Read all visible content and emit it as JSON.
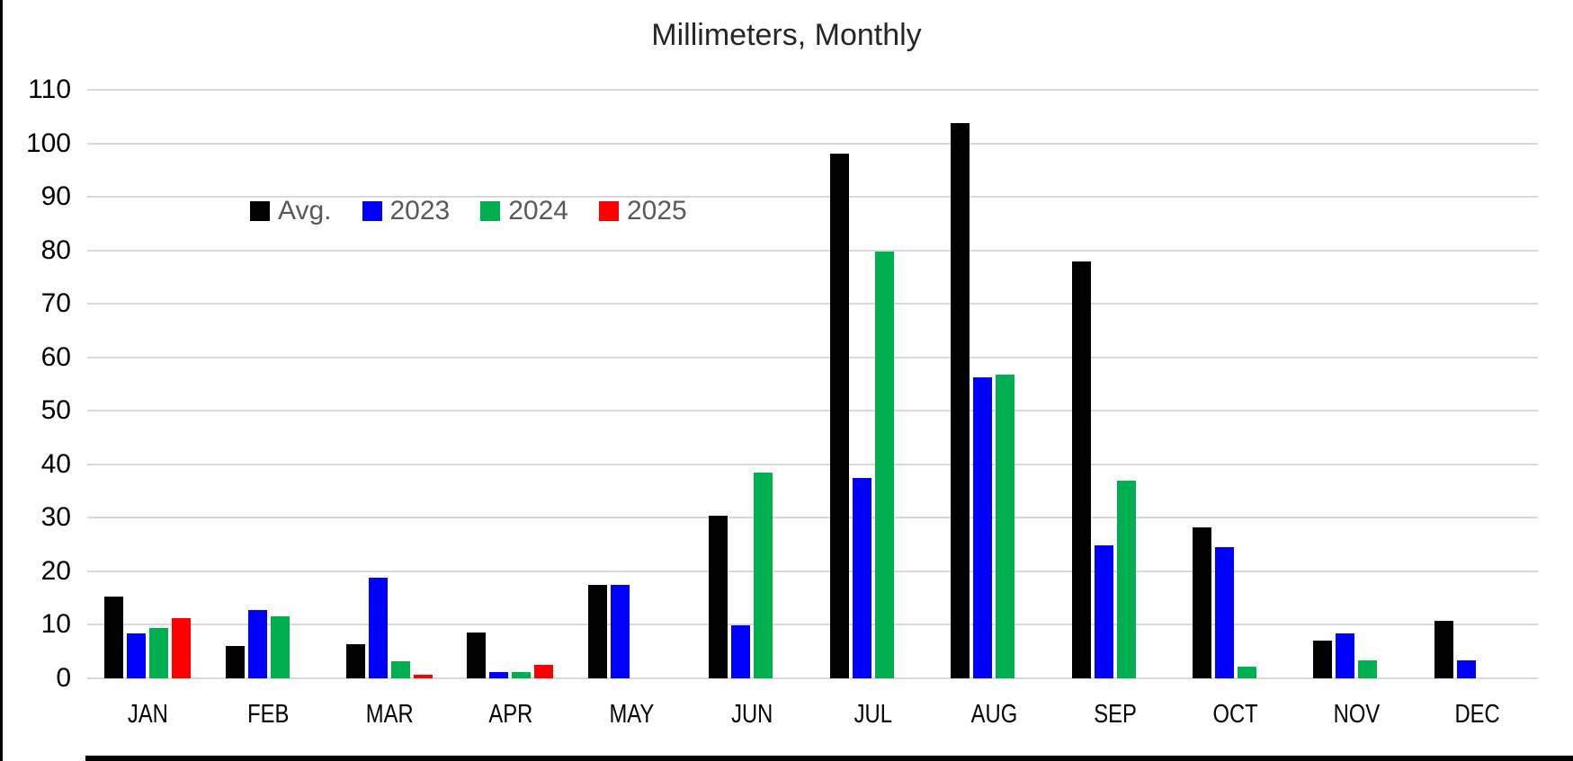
{
  "chart_data": {
    "type": "bar",
    "title": "Millimeters, Monthly",
    "categories": [
      "JAN",
      "FEB",
      "MAR",
      "APR",
      "MAY",
      "JUN",
      "JUL",
      "AUG",
      "SEP",
      "OCT",
      "NOV",
      "DEC"
    ],
    "series": [
      {
        "name": "Avg.",
        "color": "#000000",
        "values": [
          15.2,
          6.1,
          6.4,
          8.5,
          17.4,
          30.4,
          98.1,
          103.8,
          78.0,
          28.2,
          7.1,
          10.8
        ]
      },
      {
        "name": "2023",
        "color": "#0000ff",
        "values": [
          8.4,
          12.8,
          18.8,
          1.1,
          17.5,
          9.9,
          37.5,
          56.3,
          24.9,
          24.5,
          8.4,
          3.3
        ]
      },
      {
        "name": "2024",
        "color": "#00b050",
        "values": [
          9.4,
          11.6,
          3.2,
          1.2,
          null,
          38.4,
          79.7,
          56.8,
          36.9,
          2.1,
          3.4,
          null
        ]
      },
      {
        "name": "2025",
        "color": "#ff0000",
        "values": [
          11.3,
          null,
          0.6,
          2.5,
          null,
          null,
          null,
          null,
          null,
          null,
          null,
          null
        ]
      }
    ],
    "xlabel": "",
    "ylabel": "",
    "ylim": [
      0,
      110
    ],
    "yticks": [
      0,
      10,
      20,
      30,
      40,
      50,
      60,
      70,
      80,
      90,
      100,
      110
    ],
    "grid": true,
    "gridline_color": "#d9d9d9",
    "legend_position": "inside-upper-left",
    "legend_labels": [
      "Avg.",
      "2023",
      "2024",
      "2025"
    ]
  }
}
